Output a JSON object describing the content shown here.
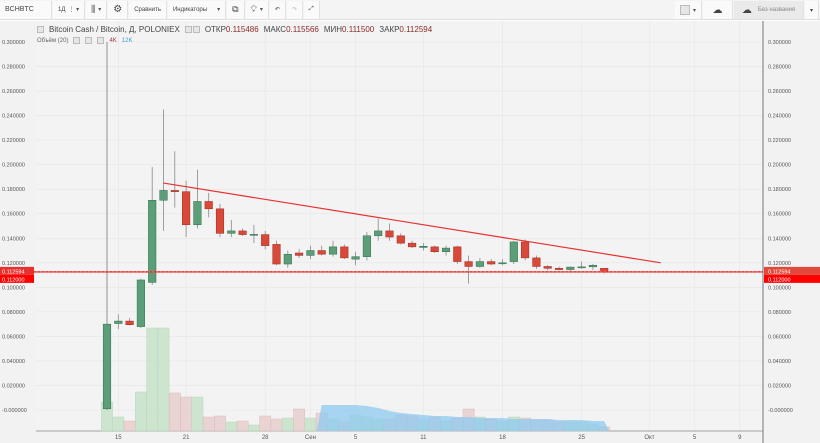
{
  "toolbar": {
    "symbol": "BCHBTC",
    "interval": "1Д",
    "compare": "Сравнить",
    "indicators": "Индикаторы",
    "layout_name": "Без названия",
    "icons": [
      "bars-style-icon",
      "gear-icon",
      "add-alert-icon",
      "lightbulb-icon",
      "undo-icon",
      "redo-icon",
      "fullscreen-icon",
      "layout-square-icon",
      "cloud-download-icon",
      "cloud-upload-icon"
    ]
  },
  "legend": {
    "title": "Bitcoin Cash / Bitcoin, Д, POLONIEX",
    "open_label": "ОТКР",
    "open": "0.115486",
    "high_label": "МАКС",
    "high": "0.115566",
    "low_label": "МИН",
    "low": "0.111500",
    "close_label": "ЗАКР",
    "close": "0.112594"
  },
  "volume_legend": {
    "label": "Объём (20)",
    "value": "4K",
    "ma": "12K"
  },
  "colors": {
    "up": "#5b9e78",
    "down": "#d9493a",
    "trendline": "#e8302f",
    "price_line": "#e8302f",
    "volume_up": "#c9e3cc",
    "volume_down": "#e8d0d0",
    "volume_ma": "#8ec9f0"
  },
  "chart_data": {
    "type": "candlestick",
    "y_ticks": [
      "0.300000",
      "0.280000",
      "0.260000",
      "0.240000",
      "0.220000",
      "0.200000",
      "0.180000",
      "0.160000",
      "0.140000",
      "0.120000",
      "0.100000",
      "0.080000",
      "0.060000",
      "0.040000",
      "0.020000",
      "-0.000000"
    ],
    "ylim": [
      0,
      0.3
    ],
    "x_ticks": [
      {
        "label": "15",
        "day": 1
      },
      {
        "label": "21",
        "day": 7
      },
      {
        "label": "28",
        "day": 14
      },
      {
        "label": "Сен",
        "day": 18
      },
      {
        "label": "5",
        "day": 22
      },
      {
        "label": "11",
        "day": 28
      },
      {
        "label": "18",
        "day": 35
      },
      {
        "label": "25",
        "day": 42
      },
      {
        "label": "Окт",
        "day": 48
      },
      {
        "label": "5",
        "day": 52
      },
      {
        "label": "9",
        "day": 56
      }
    ],
    "price_label": "0.112594",
    "price_label2": "0.112000",
    "current_price": 0.112594,
    "trendline": {
      "from": {
        "day": 5,
        "price": 0.185
      },
      "to": {
        "day": 49,
        "price": 0.12
      }
    },
    "candles": [
      [
        0.001,
        0.3,
        0.0,
        0.07,
        29
      ],
      [
        0.0705,
        0.078,
        0.066,
        0.0725,
        14
      ],
      [
        0.0725,
        0.075,
        0.069,
        0.0695,
        10
      ],
      [
        0.068,
        0.107,
        0.067,
        0.106,
        39
      ],
      [
        0.104,
        0.198,
        0.102,
        0.171,
        103
      ],
      [
        0.171,
        0.245,
        0.146,
        0.179,
        103
      ],
      [
        0.179,
        0.211,
        0.165,
        0.178,
        38
      ],
      [
        0.178,
        0.187,
        0.141,
        0.151,
        34
      ],
      [
        0.151,
        0.196,
        0.148,
        0.17,
        34
      ],
      [
        0.17,
        0.177,
        0.157,
        0.164,
        14
      ],
      [
        0.164,
        0.168,
        0.141,
        0.144,
        15
      ],
      [
        0.144,
        0.155,
        0.141,
        0.146,
        9
      ],
      [
        0.146,
        0.148,
        0.142,
        0.143,
        10
      ],
      [
        0.143,
        0.151,
        0.136,
        0.1432,
        6
      ],
      [
        0.143,
        0.146,
        0.131,
        0.134,
        15
      ],
      [
        0.135,
        0.138,
        0.118,
        0.119,
        12
      ],
      [
        0.119,
        0.13,
        0.116,
        0.127,
        13
      ],
      [
        0.128,
        0.131,
        0.124,
        0.126,
        22
      ],
      [
        0.126,
        0.134,
        0.123,
        0.13,
        13
      ],
      [
        0.13,
        0.134,
        0.126,
        0.127,
        18
      ],
      [
        0.127,
        0.138,
        0.125,
        0.133,
        12
      ],
      [
        0.133,
        0.135,
        0.123,
        0.124,
        9
      ],
      [
        0.123,
        0.129,
        0.118,
        0.125,
        16
      ],
      [
        0.125,
        0.145,
        0.122,
        0.142,
        14
      ],
      [
        0.142,
        0.156,
        0.138,
        0.146,
        12
      ],
      [
        0.146,
        0.152,
        0.138,
        0.141,
        12
      ],
      [
        0.142,
        0.144,
        0.135,
        0.136,
        16
      ],
      [
        0.136,
        0.138,
        0.132,
        0.133,
        15
      ],
      [
        0.1325,
        0.136,
        0.13,
        0.1335,
        12
      ],
      [
        0.133,
        0.134,
        0.128,
        0.129,
        14
      ],
      [
        0.129,
        0.134,
        0.126,
        0.132,
        10
      ],
      [
        0.133,
        0.134,
        0.119,
        0.121,
        13
      ],
      [
        0.121,
        0.126,
        0.103,
        0.117,
        22
      ],
      [
        0.117,
        0.124,
        0.116,
        0.121,
        14
      ],
      [
        0.121,
        0.123,
        0.118,
        0.119,
        12
      ],
      [
        0.1195,
        0.123,
        0.118,
        0.12,
        10
      ],
      [
        0.121,
        0.138,
        0.119,
        0.137,
        14
      ],
      [
        0.137,
        0.139,
        0.122,
        0.124,
        13
      ],
      [
        0.124,
        0.126,
        0.115,
        0.117,
        11
      ],
      [
        0.117,
        0.118,
        0.114,
        0.1155,
        11
      ],
      [
        0.1155,
        0.117,
        0.114,
        0.1145,
        9
      ],
      [
        0.1145,
        0.117,
        0.113,
        0.1165,
        9
      ],
      [
        0.1165,
        0.121,
        0.115,
        0.1167,
        9
      ],
      [
        0.1167,
        0.119,
        0.114,
        0.118,
        7
      ],
      [
        0.1155,
        0.1156,
        0.1115,
        0.1126,
        4
      ]
    ],
    "volume_ma": {
      "start_day": 19,
      "values": [
        26,
        26,
        26,
        26,
        25,
        23,
        20,
        18,
        17,
        16,
        15,
        15,
        14,
        14,
        13,
        13,
        13,
        12,
        12,
        12,
        12,
        11,
        11,
        11,
        10,
        10
      ]
    }
  }
}
